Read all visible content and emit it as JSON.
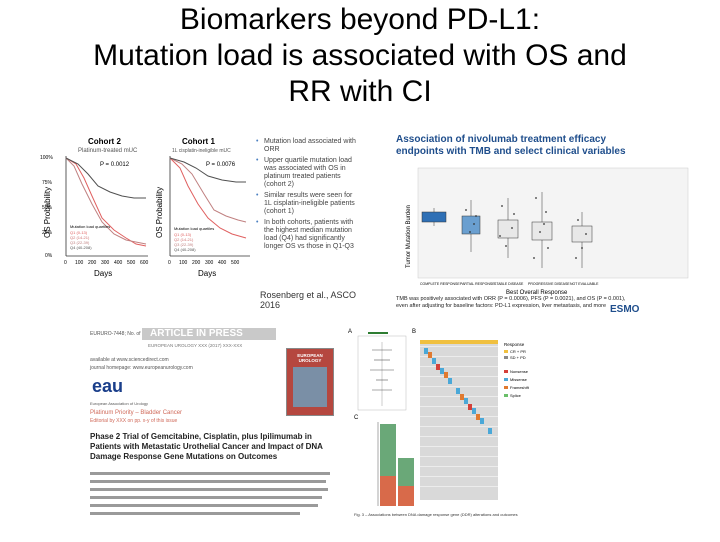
{
  "slide": {
    "title_line1": "Biomarkers beyond PD-L1:",
    "title_line2": "Mutation load is associated with OS and",
    "title_line3": "RR with CI"
  },
  "km_figure": {
    "cohort2_title": "Cohort 2",
    "cohort2_sub": "Platinum-treated mUC",
    "cohort1_title": "Cohort 1",
    "cohort1_sub": "1L cisplatin-ineligible mUC",
    "p_value_left": "P = 0.0012",
    "p_value_right": "P = 0.0076",
    "ylabel": "OS Probability",
    "xlabel": "Days",
    "xticks": [
      "0",
      "100",
      "200",
      "300",
      "400",
      "500",
      "600"
    ],
    "yticks": [
      "100%",
      "75%",
      "50%",
      "25%",
      "0%"
    ],
    "legend_title": "Mutation load quartiles",
    "legend_items": [
      "Q1 (0-13)",
      "Q2 (14-21)",
      "Q3 (22-39)",
      "Q4 (40-208)"
    ],
    "colors": {
      "q1": "#e06060",
      "q2": "#d07070",
      "q3": "#c08080",
      "q4": "#505050"
    }
  },
  "bullets": {
    "items": [
      "Mutation load associated with ORR",
      "Upper quartile mutation load was associated with OS in platinum treated patients (cohort 2)",
      "Similar results were seen for 1L cisplatin-ineligible patients (cohort 1)"
    ],
    "subitem": "In both cohorts, patients with the highest median mutation load (Q4) had significantly longer OS vs those in Q1-Q3",
    "citation": "Rosenberg et al., ASCO 2016"
  },
  "box_figure": {
    "title_line1": "Association of nivolumab treatment efficacy",
    "title_line2": "endpoints with TMB and select clinical variables",
    "ylabel": "Tumor Mutation Burden",
    "xlabel": "Best Overall Response",
    "categories": [
      "COMPLETE RESPONSE",
      "PARTIAL RESPONSE",
      "STABLE DISEASE",
      "PROGRESSIVE DISEASE",
      "NOT EVALUABLE"
    ],
    "box_colors": [
      "#2e6fb5",
      "#6a9fd0",
      "#e8e8e8",
      "#e8e8e8",
      "#e8e8e8"
    ],
    "caption": "TMB was positively associated with ORR (P = 0.0006), PFS (P = 0.0021), and OS (P = 0.001), even after adjusting for baseline factors: PD-L1 expression, liver metastasis, and more",
    "logo": "ESMO"
  },
  "article": {
    "header_left": "EURURO-7448; No. of Pages 8",
    "in_press": "ARTICLE IN PRESS",
    "journal_line": "EUROPEAN UROLOGY XXX (2017) XXX-XXX",
    "available": "available at www.sciencedirect.com",
    "homepage": "journal homepage: www.europeanurology.com",
    "eau_logo": "eau",
    "eau_sub": "European Association of Urology",
    "journal_cover": "EUROPEAN UROLOGY",
    "category": "Platinum Priority – Bladder Cancer",
    "editor_note": "Editorial by XXX on pp. x-y of this issue",
    "headline_1": "Phase 2 Trial of Gemcitabine, Cisplatin, plus Ipilimumab in",
    "headline_2": "Patients with Metastatic Urothelial Cancer and Impact of DNA",
    "headline_3": "Damage Response Gene Mutations on Outcomes"
  },
  "heatmap_figure": {
    "panel_a": "A",
    "panel_b": "B",
    "panel_c": "C",
    "legend_title": "Response",
    "legend_items": [
      "CR + PR",
      "SD + PD"
    ],
    "mutation_legend": [
      "Nonsense",
      "Missense",
      "Frameshift",
      "Splice"
    ],
    "caption": "Fig. 3 – Associations between DNA damage response gene (DDR) alterations and outcomes"
  }
}
